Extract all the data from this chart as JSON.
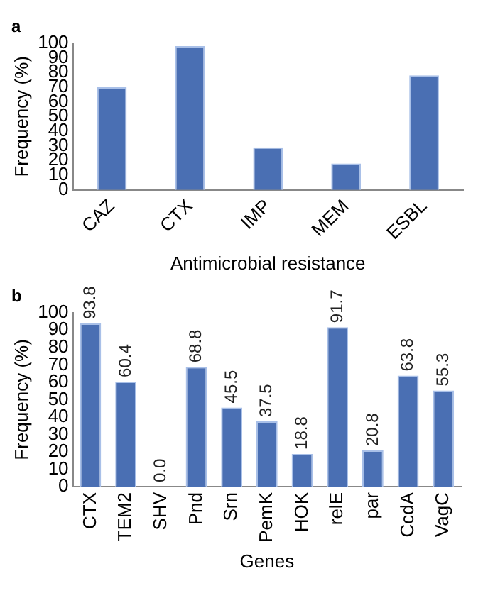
{
  "chart_data": [
    {
      "type": "bar",
      "title": "a",
      "xlabel": "Antimicrobial resistance",
      "ylabel": "Frequency (%)",
      "categories": [
        "CAZ",
        "CTX",
        "IMP",
        "MEM",
        "ESBL"
      ],
      "values": [
        70,
        98,
        29,
        18,
        78
      ],
      "color": "#4a6fb3",
      "ylim": [
        0,
        100
      ],
      "yticks": [
        0,
        10,
        20,
        30,
        40,
        50,
        60,
        70,
        80,
        90,
        100
      ],
      "grid": false,
      "legend": false
    },
    {
      "type": "bar",
      "title": "b",
      "xlabel": "Genes",
      "ylabel": "Frequency (%)",
      "categories": [
        "CTX",
        "TEM2",
        "SHV",
        "Pnd",
        "Srn",
        "PemK",
        "HOK",
        "relE",
        "par",
        "CcdA",
        "VagC"
      ],
      "values": [
        93.8,
        60.4,
        0.0,
        68.8,
        45.5,
        37.5,
        18.8,
        91.7,
        20.8,
        63.8,
        55.3
      ],
      "value_labels": [
        "93.8",
        "60.4",
        "0.0",
        "68.8",
        "45.5",
        "37.5",
        "18.8",
        "91.7",
        "20.8",
        "63.8",
        "55.3"
      ],
      "color": "#4a6fb3",
      "ylim": [
        0,
        100
      ],
      "yticks": [
        0,
        10,
        20,
        30,
        40,
        50,
        60,
        70,
        80,
        90,
        100
      ],
      "grid": false,
      "legend": false
    }
  ]
}
